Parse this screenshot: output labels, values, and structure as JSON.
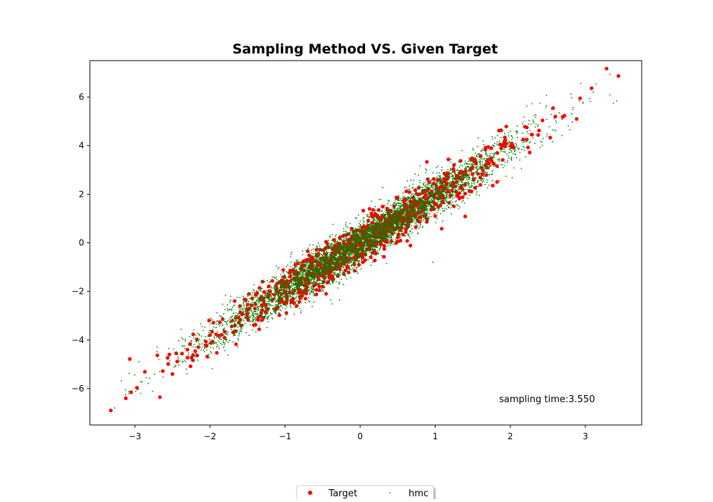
{
  "chart_data": {
    "type": "scatter",
    "title": "Sampling Method VS. Given Target",
    "xlabel": "",
    "ylabel": "",
    "xlim": [
      -3.6,
      3.75
    ],
    "ylim": [
      -7.5,
      7.5
    ],
    "xticks": [
      -3,
      -2,
      -1,
      0,
      1,
      2,
      3
    ],
    "yticks": [
      -6,
      -4,
      -2,
      0,
      2,
      4,
      6
    ],
    "xtick_labels": [
      "−3",
      "−2",
      "−1",
      "0",
      "1",
      "2",
      "3"
    ],
    "ytick_labels": [
      "−6",
      "−4",
      "−2",
      "0",
      "2",
      "4",
      "6"
    ],
    "grid": false,
    "legend_position": "bottom-center",
    "annotation": "sampling time:3.550",
    "distribution": {
      "x_mean": 0.0,
      "x_std": 1.0,
      "y_mean": 0.0,
      "y_std": 2.0,
      "correlation": 0.975
    },
    "series": [
      {
        "name": "Target",
        "color": "#ff0000",
        "marker": "large-dot",
        "approx_count": 1000,
        "points": [
          [
            3.44,
            6.87
          ],
          [
            2.93,
            5.95
          ],
          [
            2.6,
            5.2
          ],
          [
            2.22,
            4.75
          ],
          [
            2.22,
            4.25
          ],
          [
            1.88,
            4.63
          ],
          [
            2.02,
            4.08
          ],
          [
            1.9,
            4.0
          ],
          [
            1.7,
            3.4
          ],
          [
            1.5,
            3.1
          ],
          [
            1.25,
            3.2
          ],
          [
            1.0,
            1.1
          ],
          [
            0.5,
            1.85
          ],
          [
            -0.35,
            0.12
          ],
          [
            -0.5,
            -1.8
          ],
          [
            -1.3,
            -1.6
          ],
          [
            -1.6,
            -2.6
          ],
          [
            -2.0,
            -3.8
          ],
          [
            -2.3,
            -4.4
          ],
          [
            -2.45,
            -4.55
          ],
          [
            -2.5,
            -5.4
          ],
          [
            -3.05,
            -6.15
          ],
          [
            -3.12,
            -6.4
          ]
        ]
      },
      {
        "name": "hmc",
        "color": "#008000",
        "marker": "small-dot",
        "approx_count": 5000,
        "points": [
          [
            -3.27,
            -6.8
          ],
          [
            2.97,
            5.75
          ],
          [
            2.65,
            5.35
          ],
          [
            0.97,
            -0.8
          ],
          [
            0.35,
            -0.85
          ],
          [
            -2.85,
            -5.55
          ],
          [
            -2.95,
            -6.0
          ],
          [
            2.3,
            5.05
          ],
          [
            2.55,
            5.5
          ]
        ]
      }
    ]
  },
  "legend": {
    "entries": [
      {
        "label": "Target",
        "series": "Target"
      },
      {
        "label": "hmc",
        "series": "hmc"
      }
    ]
  }
}
